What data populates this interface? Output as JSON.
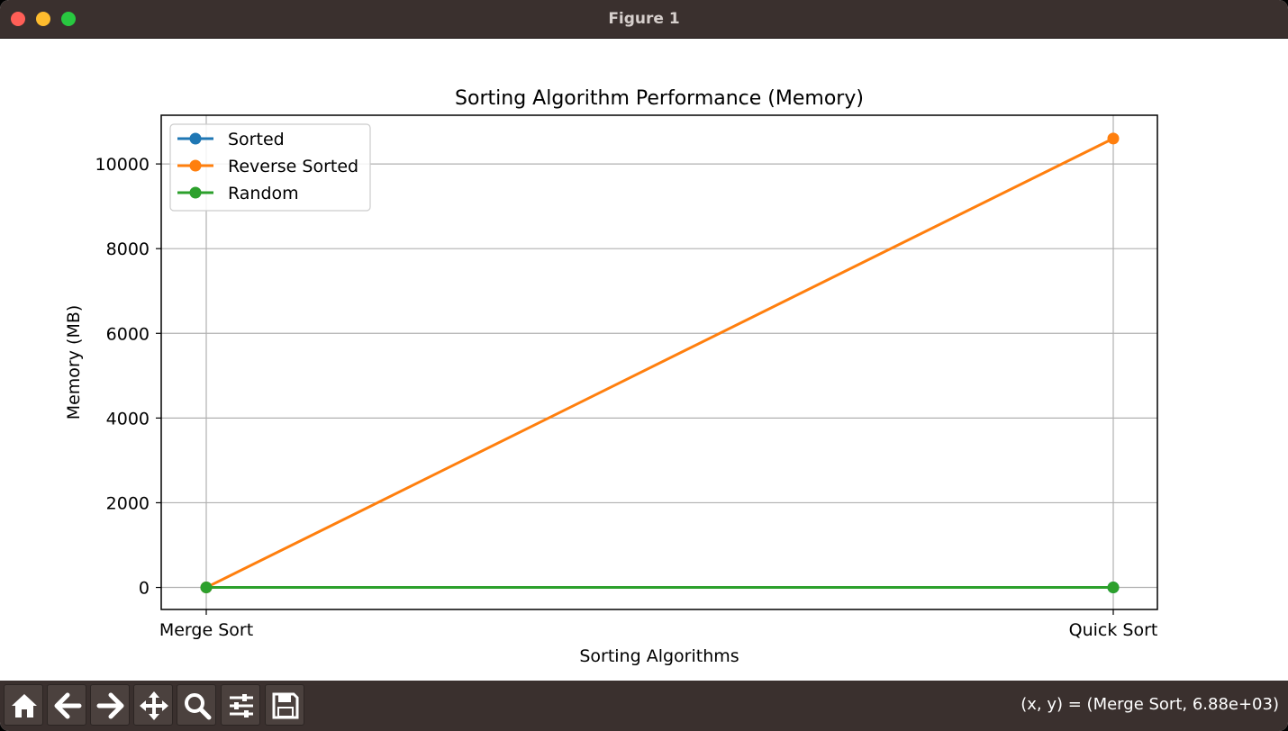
{
  "window": {
    "title": "Figure 1"
  },
  "toolbar": {
    "buttons": [
      {
        "name": "home-icon"
      },
      {
        "name": "back-arrow-icon"
      },
      {
        "name": "forward-arrow-icon"
      },
      {
        "name": "pan-icon"
      },
      {
        "name": "zoom-icon"
      },
      {
        "name": "configure-subplots-icon"
      },
      {
        "name": "save-icon"
      }
    ],
    "coords_text": "(x, y) = (Merge Sort, 6.88e+03)"
  },
  "chart_data": {
    "type": "line",
    "title": "Sorting Algorithm Performance (Memory)",
    "xlabel": "Sorting Algorithms",
    "ylabel": "Memory (MB)",
    "categories": [
      "Merge Sort",
      "Quick Sort"
    ],
    "ylim": [
      -520,
      11150
    ],
    "yticks": [
      0,
      2000,
      4000,
      6000,
      8000,
      10000
    ],
    "grid": true,
    "legend_position": "top-left",
    "series": [
      {
        "name": "Sorted",
        "values": [
          0,
          0
        ],
        "color": "#1f77b4"
      },
      {
        "name": "Reverse Sorted",
        "values": [
          0,
          10600
        ],
        "color": "#ff7f0e"
      },
      {
        "name": "Random",
        "values": [
          0,
          0
        ],
        "color": "#2ca02c"
      }
    ]
  }
}
